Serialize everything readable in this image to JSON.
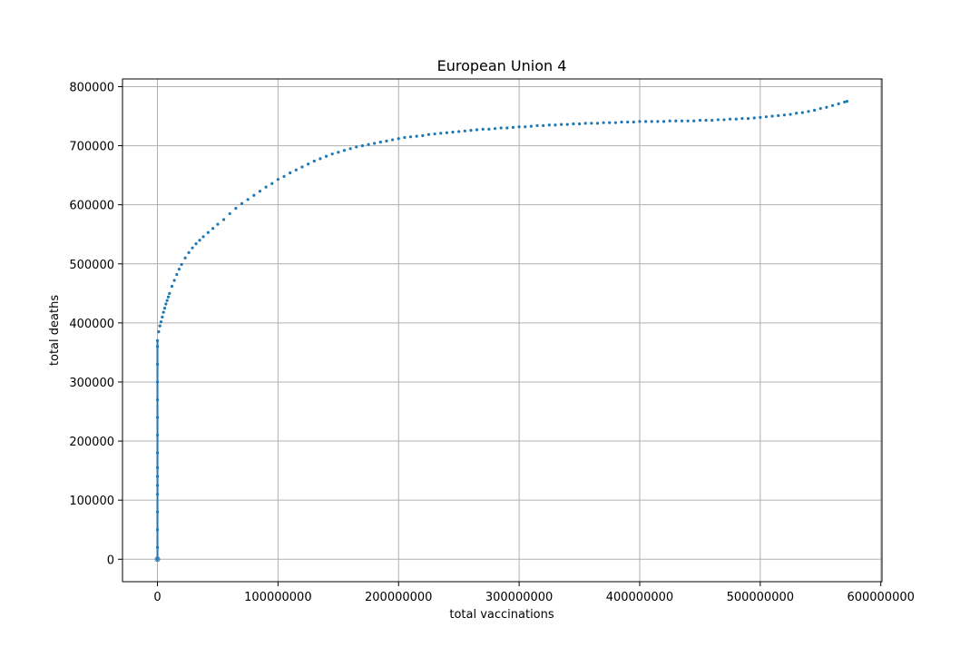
{
  "chart_data": {
    "type": "scatter",
    "title": "European Union 4",
    "xlabel": "total vaccinations",
    "ylabel": "total deaths",
    "xlim": [
      -29000000,
      601000000
    ],
    "ylim": [
      -38000000,
      813000
    ],
    "ylim_note": "",
    "x_ticks": [
      0,
      100000000,
      200000000,
      300000000,
      400000000,
      500000000,
      600000000
    ],
    "x_tick_labels": [
      "0",
      "100000000",
      "200000000",
      "300000000",
      "400000000",
      "500000000",
      "600000000"
    ],
    "y_ticks": [
      0,
      100000,
      200000,
      300000,
      400000,
      500000,
      600000,
      700000,
      800000
    ],
    "y_tick_labels": [
      "0",
      "100000",
      "200000",
      "300000",
      "400000",
      "500000",
      "600000",
      "700000",
      "800000"
    ],
    "grid": true,
    "legend": "none",
    "marker_color": "#1f77b4",
    "series": [
      {
        "vertical_cluster_at_zero": {
          "x": 0,
          "y_min": 0,
          "y_max": 370000
        },
        "points": [
          [
            0,
            0
          ],
          [
            0,
            20000
          ],
          [
            0,
            50000
          ],
          [
            0,
            80000
          ],
          [
            0,
            110000
          ],
          [
            0,
            125000
          ],
          [
            0,
            140000
          ],
          [
            0,
            155000
          ],
          [
            0,
            180000
          ],
          [
            0,
            210000
          ],
          [
            0,
            240000
          ],
          [
            0,
            270000
          ],
          [
            0,
            300000
          ],
          [
            0,
            330000
          ],
          [
            0,
            360000
          ],
          [
            0,
            370000
          ],
          [
            1000000,
            385000
          ],
          [
            2000000,
            395000
          ],
          [
            3000000,
            402000
          ],
          [
            4000000,
            410000
          ],
          [
            5000000,
            418000
          ],
          [
            6000000,
            425000
          ],
          [
            7000000,
            432000
          ],
          [
            8000000,
            438000
          ],
          [
            9000000,
            444000
          ],
          [
            10000000,
            450000
          ],
          [
            12000000,
            462000
          ],
          [
            14000000,
            472000
          ],
          [
            16000000,
            482000
          ],
          [
            18000000,
            491000
          ],
          [
            20000000,
            499000
          ],
          [
            23000000,
            510000
          ],
          [
            26000000,
            519000
          ],
          [
            29000000,
            527000
          ],
          [
            32000000,
            534000
          ],
          [
            35000000,
            540000
          ],
          [
            38000000,
            546000
          ],
          [
            42000000,
            553000
          ],
          [
            46000000,
            560000
          ],
          [
            50000000,
            567000
          ],
          [
            55000000,
            575000
          ],
          [
            60000000,
            585000
          ],
          [
            65000000,
            594000
          ],
          [
            70000000,
            602000
          ],
          [
            75000000,
            609000
          ],
          [
            80000000,
            616000
          ],
          [
            85000000,
            623000
          ],
          [
            90000000,
            630000
          ],
          [
            95000000,
            636000
          ],
          [
            100000000,
            643000
          ],
          [
            105000000,
            648000
          ],
          [
            110000000,
            654000
          ],
          [
            115000000,
            659000
          ],
          [
            120000000,
            664000
          ],
          [
            125000000,
            669000
          ],
          [
            130000000,
            674000
          ],
          [
            135000000,
            678000
          ],
          [
            140000000,
            682000
          ],
          [
            145000000,
            686000
          ],
          [
            150000000,
            689000
          ],
          [
            155000000,
            692000
          ],
          [
            160000000,
            695000
          ],
          [
            165000000,
            698000
          ],
          [
            170000000,
            700000
          ],
          [
            175000000,
            702000
          ],
          [
            180000000,
            704000
          ],
          [
            185000000,
            706000
          ],
          [
            190000000,
            708000
          ],
          [
            195000000,
            710000
          ],
          [
            200000000,
            712000
          ],
          [
            205000000,
            714000
          ],
          [
            210000000,
            715000
          ],
          [
            215000000,
            716000
          ],
          [
            220000000,
            717000
          ],
          [
            225000000,
            719000
          ],
          [
            230000000,
            720000
          ],
          [
            235000000,
            721000
          ],
          [
            240000000,
            722000
          ],
          [
            245000000,
            723000
          ],
          [
            250000000,
            724000
          ],
          [
            255000000,
            725000
          ],
          [
            260000000,
            726000
          ],
          [
            265000000,
            727000
          ],
          [
            270000000,
            728000
          ],
          [
            275000000,
            728000
          ],
          [
            280000000,
            729000
          ],
          [
            285000000,
            730000
          ],
          [
            290000000,
            730000
          ],
          [
            295000000,
            731000
          ],
          [
            300000000,
            732000
          ],
          [
            305000000,
            732000
          ],
          [
            310000000,
            733000
          ],
          [
            315000000,
            734000
          ],
          [
            320000000,
            734000
          ],
          [
            325000000,
            735000
          ],
          [
            330000000,
            735000
          ],
          [
            335000000,
            736000
          ],
          [
            340000000,
            736000
          ],
          [
            345000000,
            737000
          ],
          [
            350000000,
            737000
          ],
          [
            355000000,
            738000
          ],
          [
            360000000,
            738000
          ],
          [
            365000000,
            738000
          ],
          [
            370000000,
            739000
          ],
          [
            375000000,
            739000
          ],
          [
            380000000,
            739000
          ],
          [
            385000000,
            740000
          ],
          [
            390000000,
            740000
          ],
          [
            395000000,
            740000
          ],
          [
            400000000,
            741000
          ],
          [
            405000000,
            741000
          ],
          [
            410000000,
            741000
          ],
          [
            415000000,
            741000
          ],
          [
            420000000,
            741000
          ],
          [
            425000000,
            742000
          ],
          [
            430000000,
            742000
          ],
          [
            435000000,
            742000
          ],
          [
            440000000,
            742000
          ],
          [
            445000000,
            742000
          ],
          [
            450000000,
            743000
          ],
          [
            455000000,
            743000
          ],
          [
            460000000,
            743000
          ],
          [
            465000000,
            744000
          ],
          [
            470000000,
            744000
          ],
          [
            475000000,
            745000
          ],
          [
            480000000,
            745000
          ],
          [
            485000000,
            746000
          ],
          [
            490000000,
            746000
          ],
          [
            495000000,
            747000
          ],
          [
            500000000,
            748000
          ],
          [
            505000000,
            749000
          ],
          [
            510000000,
            750000
          ],
          [
            515000000,
            751000
          ],
          [
            520000000,
            752000
          ],
          [
            525000000,
            753000
          ],
          [
            530000000,
            755000
          ],
          [
            535000000,
            756000
          ],
          [
            540000000,
            758000
          ],
          [
            545000000,
            760000
          ],
          [
            550000000,
            763000
          ],
          [
            555000000,
            765000
          ],
          [
            560000000,
            768000
          ],
          [
            565000000,
            771000
          ],
          [
            570000000,
            774000
          ],
          [
            572000000,
            775000
          ]
        ]
      }
    ]
  }
}
